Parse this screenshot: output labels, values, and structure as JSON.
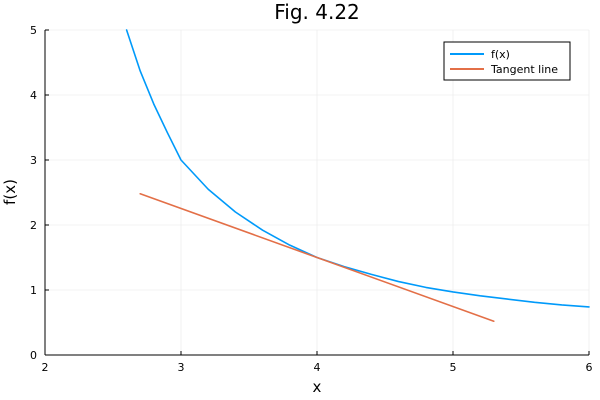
{
  "chart_data": {
    "type": "line",
    "title": "Fig. 4.22",
    "xlabel": "x",
    "ylabel": "f(x)",
    "xlim": [
      2,
      6
    ],
    "ylim": [
      0,
      5
    ],
    "xticks": [
      "2",
      "3",
      "4",
      "5",
      "6"
    ],
    "yticks": [
      "0",
      "1",
      "2",
      "3",
      "4",
      "5"
    ],
    "grid": true,
    "legend_position": "top-right",
    "series": [
      {
        "name": "f(x)",
        "color": "#009AFA",
        "x": [
          2.6,
          2.7,
          2.8,
          2.9,
          3.0,
          3.2,
          3.4,
          3.6,
          3.8,
          4.0,
          4.2,
          4.4,
          4.6,
          4.8,
          5.0,
          5.2,
          5.4,
          5.6,
          5.8,
          6.0
        ],
        "y": [
          5.0,
          4.37,
          3.86,
          3.42,
          3.0,
          2.55,
          2.2,
          1.92,
          1.69,
          1.5,
          1.36,
          1.24,
          1.13,
          1.04,
          0.97,
          0.91,
          0.86,
          0.81,
          0.77,
          0.74
        ]
      },
      {
        "name": "Tangent line",
        "color": "#E36F47",
        "x": [
          2.7,
          5.3
        ],
        "y": [
          2.48,
          0.52
        ]
      }
    ]
  }
}
